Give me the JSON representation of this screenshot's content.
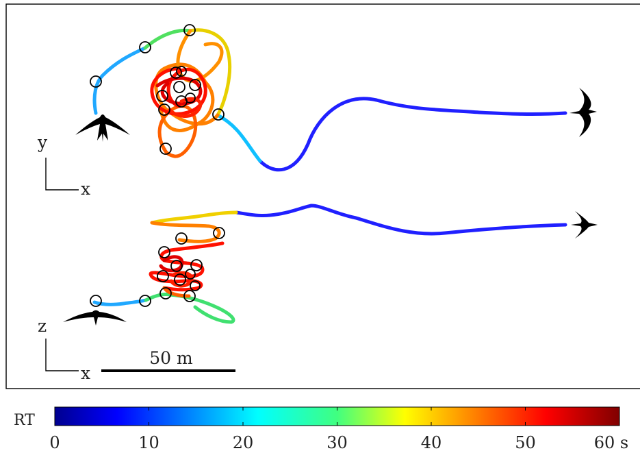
{
  "figure": {
    "views": [
      {
        "axis1": "y",
        "axis2": "x"
      },
      {
        "axis1": "z",
        "axis2": "x"
      }
    ],
    "scale_bar": {
      "label": "50 m"
    },
    "colorbar": {
      "label": "RT",
      "ticks": [
        "0",
        "10",
        "20",
        "30",
        "40",
        "50",
        "60 s"
      ],
      "colormap": "jet",
      "range_seconds": [
        0,
        60
      ]
    },
    "colors": {
      "frame": "#000000",
      "bird": "#000000",
      "marker": "#000000"
    },
    "icons": {
      "bird": "swift-silhouette-icon",
      "marker": "circle-marker-icon"
    }
  }
}
